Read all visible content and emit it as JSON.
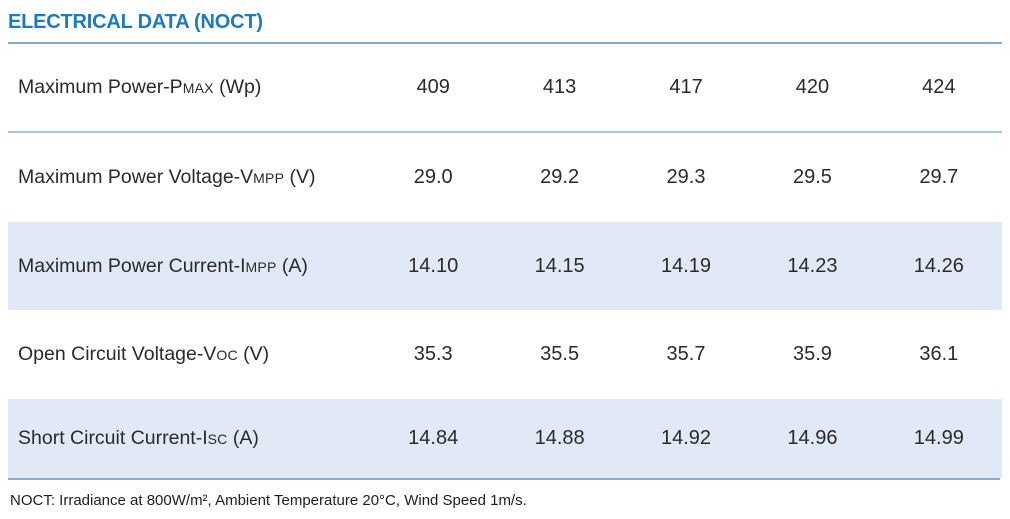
{
  "title": "ELECTRICAL DATA (NOCT)",
  "colors": {
    "title_blue": "#1b7bc0",
    "title_rule_blue": "#7fa9ce",
    "row_divider_blue": "#a9c7e3",
    "bottom_rule_blue": "#8fa9ce",
    "row_shade": "#e0e9f5",
    "text": "#2b2a28"
  },
  "table": {
    "rows": [
      {
        "label_prefix": "Maximum Power-P",
        "label_sub": "MAX",
        "label_suffix": " (Wp)",
        "values": [
          "409",
          "413",
          "417",
          "420",
          "424"
        ]
      },
      {
        "label_prefix": "Maximum Power Voltage-V",
        "label_sub": "MPP",
        "label_suffix": " (V)",
        "values": [
          "29.0",
          "29.2",
          "29.3",
          "29.5",
          "29.7"
        ]
      },
      {
        "label_prefix": "Maximum Power Current-I",
        "label_sub": "MPP",
        "label_suffix": " (A)",
        "values": [
          "14.10",
          "14.15",
          "14.19",
          "14.23",
          "14.26"
        ]
      },
      {
        "label_prefix": "Open Circuit Voltage-V",
        "label_sub": "OC",
        "label_suffix": " (V)",
        "values": [
          "35.3",
          "35.5",
          "35.7",
          "35.9",
          "36.1"
        ]
      },
      {
        "label_prefix": "Short Circuit Current-I",
        "label_sub": "SC",
        "label_suffix": " (A)",
        "values": [
          "14.84",
          "14.88",
          "14.92",
          "14.96",
          "14.99"
        ]
      }
    ]
  },
  "footnote": "NOCT: Irradiance at 800W/m², Ambient Temperature 20°C, Wind Speed 1m/s."
}
